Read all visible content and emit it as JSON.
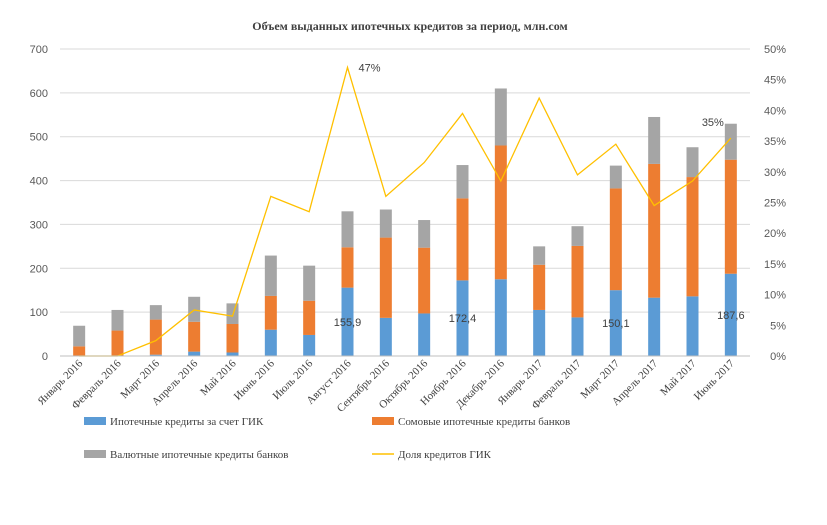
{
  "chart_data": {
    "type": "bar",
    "stacked": true,
    "title": "Объем выданных  ипотечных  кредитов  за период, млн.сом",
    "categories": [
      "Январь 2016",
      "Февраль 2016",
      "Март 2016",
      "Апрель 2016",
      "Май 2016",
      "Июнь 2016",
      "Июль 2016",
      "Август 2016",
      "Сентябрь 2016",
      "Октябрь 2016",
      "Ноябрь 2016",
      "Декабрь 2016",
      "Январь 2017",
      "Февраль 2017",
      "Март 2017",
      "Апрель 2017",
      "Май 2017",
      "Июнь 2017"
    ],
    "series": [
      {
        "name": "Ипотечные кредиты за счет ГИК",
        "color": "#5B9BD5",
        "axis": "left",
        "values": [
          0,
          0,
          3,
          10,
          8,
          60,
          48,
          155.9,
          87,
          97,
          172.4,
          175,
          105,
          88,
          150.1,
          133,
          136,
          187.6
        ]
      },
      {
        "name": "Сомовые ипотечные  кредиты банков",
        "color": "#ED7D31",
        "axis": "left",
        "values": [
          22,
          58,
          80,
          68,
          65,
          77,
          78,
          92,
          183,
          150,
          187,
          305,
          103,
          163,
          232,
          305,
          272,
          260
        ]
      },
      {
        "name": "Валютные ипотечные  кредиты банков",
        "color": "#A5A5A5",
        "axis": "left",
        "values": [
          47,
          47,
          33,
          57,
          47,
          92,
          80,
          82,
          64,
          63,
          76,
          130,
          42,
          45,
          52,
          107,
          68,
          82
        ]
      },
      {
        "name": "Доля кредитов ГИК",
        "color": "#FFC000",
        "type": "line",
        "axis": "right",
        "values": [
          0,
          0,
          2.5,
          7.5,
          6.5,
          26,
          23.5,
          47,
          26,
          31.5,
          39.5,
          28.5,
          42,
          29.5,
          34.5,
          24.5,
          28.5,
          35.5
        ]
      }
    ],
    "ylim": [
      0,
      700
    ],
    "y_ticks": [
      "0",
      "100",
      "200",
      "300",
      "400",
      "500",
      "600",
      "700"
    ],
    "y2lim": [
      0,
      50
    ],
    "y2_ticks": [
      "0%",
      "5%",
      "10%",
      "15%",
      "20%",
      "25%",
      "30%",
      "35%",
      "40%",
      "45%",
      "50%"
    ],
    "data_labels": [
      {
        "series": 0,
        "index": 7,
        "text": "155,9"
      },
      {
        "series": 0,
        "index": 10,
        "text": "172,4"
      },
      {
        "series": 0,
        "index": 14,
        "text": "150,1"
      },
      {
        "series": 0,
        "index": 17,
        "text": "187,6"
      },
      {
        "series": 3,
        "index": 7,
        "text": "47%"
      },
      {
        "series": 3,
        "index": 17,
        "text": "35%"
      }
    ],
    "legend_position": "bottom",
    "grid": true
  }
}
